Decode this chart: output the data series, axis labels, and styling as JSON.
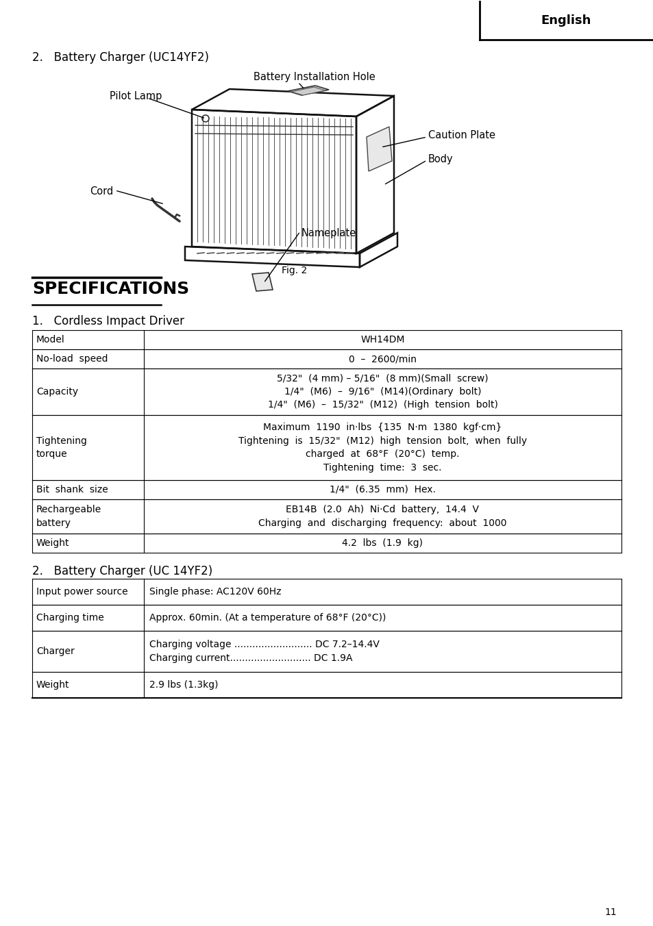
{
  "page_bg": "#ffffff",
  "page_number": "11",
  "header_text": "English",
  "section1_title": "2.   Battery Charger (UC14YF2)",
  "fig_caption": "Fig. 2",
  "specs_heading": "SPECIFICATIONS",
  "section2_title": "1.   Cordless Impact Driver",
  "section3_title": "2.   Battery Charger (UC 14YF2)",
  "table1_rows": [
    [
      "Model",
      "WH14DM"
    ],
    [
      "No-load  speed",
      "0  –  2600/min"
    ],
    [
      "Capacity",
      "5/32\"  (4 mm) – 5/16\"  (8 mm)(Small  screw)\n1/4\"  (M6)  –  9/16\"  (M14)(Ordinary  bolt)\n1/4\"  (M6)  –  15/32\"  (M12)  (High  tension  bolt)"
    ],
    [
      "Tightening\ntorque",
      "Maximum  1190  in·lbs  {135  N·m  1380  kgf·cm}\nTightening  is  15/32\"  (M12)  high  tension  bolt,  when  fully\ncharged  at  68°F  (20°C)  temp.\nTightening  time:  3  sec."
    ],
    [
      "Bit  shank  size",
      "1/4\"  (6.35  mm)  Hex."
    ],
    [
      "Rechargeable\nbattery",
      "EB14B  (2.0  Ah)  Ni·Cd  battery,  14.4  V\nCharging  and  discharging  frequency:  about  1000"
    ],
    [
      "Weight",
      "4.2  lbs  (1.9  kg)"
    ]
  ],
  "table2_rows": [
    [
      "Input power source",
      "Single phase: AC120V 60Hz"
    ],
    [
      "Charging time",
      "Approx. 60min. (At a temperature of 68°F (20°C))"
    ],
    [
      "Charger",
      "Charging voltage .......................... DC 7.2–14.4V\nCharging current........................... DC 1.9A"
    ],
    [
      "Weight",
      "2.9 lbs (1.3kg)"
    ]
  ]
}
